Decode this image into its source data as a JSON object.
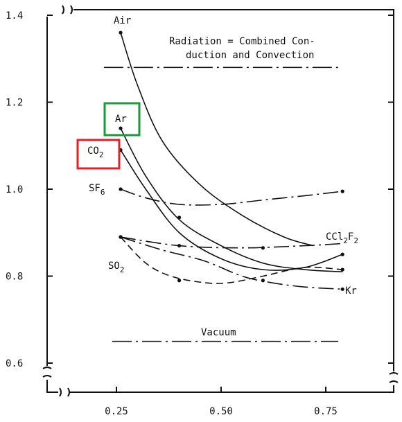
{
  "chart_data": {
    "type": "line",
    "title": "",
    "xlabel": "",
    "ylabel": "",
    "xlim": [
      0.14,
      0.9
    ],
    "ylim": [
      0.58,
      1.42
    ],
    "x_ticks": [
      {
        "value": 0.25,
        "label": "0.25"
      },
      {
        "value": 0.5,
        "label": "0.50"
      },
      {
        "value": 0.75,
        "label": "0.75"
      }
    ],
    "y_ticks": [
      {
        "value": 0.6,
        "label": "0.6"
      },
      {
        "value": 0.8,
        "label": "0.8"
      },
      {
        "value": 1.0,
        "label": "1.0"
      },
      {
        "value": 1.2,
        "label": "1.2"
      },
      {
        "value": 1.4,
        "label": "1.4"
      }
    ],
    "grid": false,
    "reference_lines": [
      {
        "id": "radiation",
        "y": 1.28,
        "x_range": [
          0.22,
          0.78
        ],
        "label_line1": "Radiation = Combined Con-",
        "label_line2": "duction and Convection"
      },
      {
        "id": "vacuum",
        "y": 0.65,
        "x_range": [
          0.24,
          0.78
        ],
        "label": "Vacuum"
      }
    ],
    "series": [
      {
        "id": "air",
        "label": "Air",
        "style": "solid",
        "points": [
          [
            0.26,
            1.36
          ],
          [
            0.3,
            1.24
          ],
          [
            0.36,
            1.11
          ],
          [
            0.45,
            1.01
          ],
          [
            0.55,
            0.94
          ],
          [
            0.65,
            0.89
          ],
          [
            0.72,
            0.87
          ]
        ],
        "markers": [
          [
            0.26,
            1.36
          ]
        ]
      },
      {
        "id": "ar",
        "label": "Ar",
        "style": "solid",
        "points": [
          [
            0.26,
            1.14
          ],
          [
            0.32,
            1.03
          ],
          [
            0.4,
            0.93
          ],
          [
            0.5,
            0.87
          ],
          [
            0.6,
            0.83
          ],
          [
            0.7,
            0.815
          ],
          [
            0.79,
            0.81
          ]
        ],
        "markers": [
          [
            0.26,
            1.14
          ],
          [
            0.4,
            0.935
          ]
        ]
      },
      {
        "id": "co2",
        "label": "CO",
        "label_sub": "2",
        "style": "solid",
        "points": [
          [
            0.26,
            1.09
          ],
          [
            0.32,
            1.0
          ],
          [
            0.4,
            0.9
          ],
          [
            0.5,
            0.84
          ],
          [
            0.6,
            0.815
          ],
          [
            0.7,
            0.82
          ],
          [
            0.79,
            0.85
          ]
        ],
        "markers": [
          [
            0.26,
            1.09
          ],
          [
            0.79,
            0.85
          ]
        ]
      },
      {
        "id": "sf6",
        "label": "SF",
        "label_sub": "6",
        "style": "dashdot",
        "points": [
          [
            0.26,
            1.0
          ],
          [
            0.32,
            0.98
          ],
          [
            0.4,
            0.965
          ],
          [
            0.5,
            0.965
          ],
          [
            0.6,
            0.975
          ],
          [
            0.7,
            0.985
          ],
          [
            0.79,
            0.995
          ]
        ],
        "markers": [
          [
            0.26,
            1.0
          ],
          [
            0.79,
            0.995
          ]
        ]
      },
      {
        "id": "ccl2f2",
        "label": "CCl",
        "label_sub": "2",
        "label_mid": "F",
        "label_sub2": "2",
        "style": "dashdot",
        "points": [
          [
            0.26,
            0.89
          ],
          [
            0.4,
            0.87
          ],
          [
            0.55,
            0.865
          ],
          [
            0.7,
            0.87
          ],
          [
            0.79,
            0.875
          ]
        ],
        "markers": [
          [
            0.26,
            0.89
          ],
          [
            0.4,
            0.87
          ],
          [
            0.6,
            0.865
          ]
        ]
      },
      {
        "id": "so2",
        "label": "SO",
        "label_sub": "2",
        "style": "dashed",
        "points": [
          [
            0.26,
            0.89
          ],
          [
            0.32,
            0.83
          ],
          [
            0.38,
            0.8
          ],
          [
            0.46,
            0.785
          ],
          [
            0.52,
            0.785
          ],
          [
            0.6,
            0.8
          ],
          [
            0.7,
            0.82
          ],
          [
            0.79,
            0.815
          ]
        ],
        "markers": [
          [
            0.26,
            0.89
          ],
          [
            0.4,
            0.79
          ],
          [
            0.79,
            0.815
          ]
        ]
      },
      {
        "id": "kr",
        "label": "Kr",
        "style": "dashdot",
        "points": [
          [
            0.26,
            0.89
          ],
          [
            0.36,
            0.86
          ],
          [
            0.46,
            0.835
          ],
          [
            0.55,
            0.8
          ],
          [
            0.62,
            0.785
          ],
          [
            0.7,
            0.775
          ],
          [
            0.79,
            0.77
          ]
        ],
        "markers": [
          [
            0.26,
            0.89
          ],
          [
            0.6,
            0.79
          ],
          [
            0.79,
            0.77
          ]
        ]
      }
    ],
    "annotations": [
      {
        "id": "ar-box",
        "target": "ar",
        "color": "#1a9a3a"
      },
      {
        "id": "co2-box",
        "target": "co2",
        "color": "#e0202a"
      }
    ]
  }
}
